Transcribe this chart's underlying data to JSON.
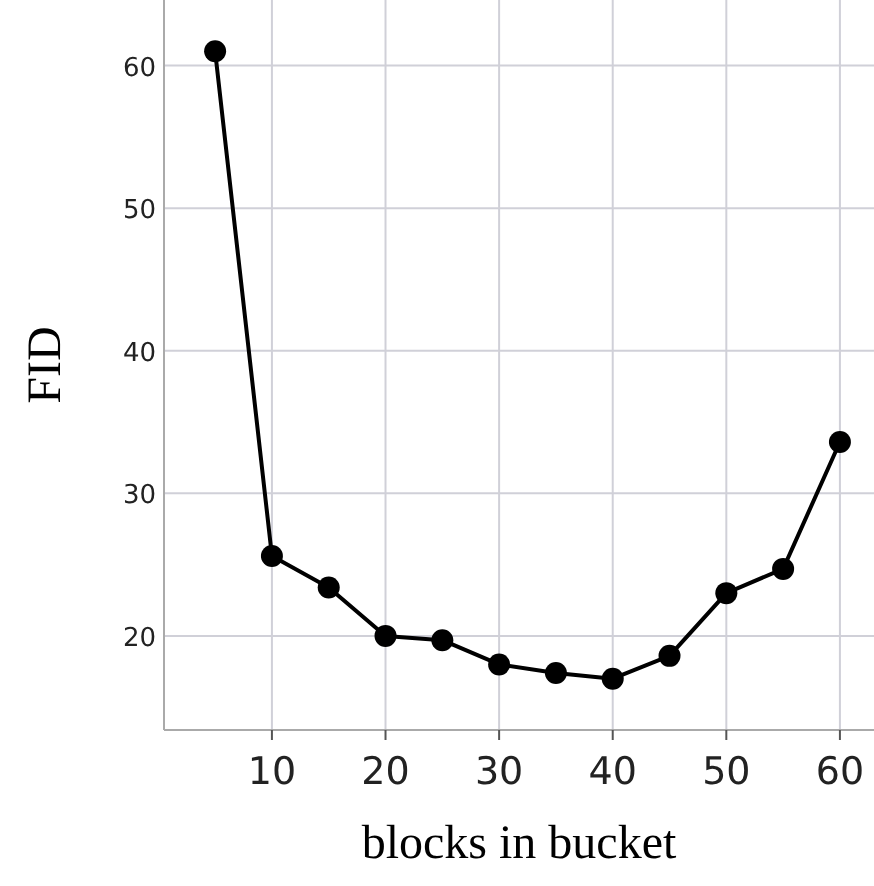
{
  "chart_data": {
    "type": "line",
    "xlabel": "blocks in bucket",
    "ylabel": "FID",
    "x": [
      5,
      10,
      15,
      20,
      25,
      30,
      35,
      40,
      45,
      50,
      55,
      60
    ],
    "series": [
      {
        "color": "#000000",
        "values": [
          61.0,
          25.6,
          23.4,
          20.0,
          19.7,
          18.0,
          17.4,
          17.0,
          18.6,
          23.0,
          24.7,
          33.6
        ]
      }
    ],
    "xlim": [
      0.5,
      63
    ],
    "xticks": [
      10,
      20,
      30,
      40,
      50,
      60
    ],
    "ylim": [
      13.4,
      64.6
    ],
    "yticks": [
      20,
      30,
      40,
      50,
      60
    ],
    "grid": true,
    "marker": "circle",
    "line_style": "solid"
  }
}
